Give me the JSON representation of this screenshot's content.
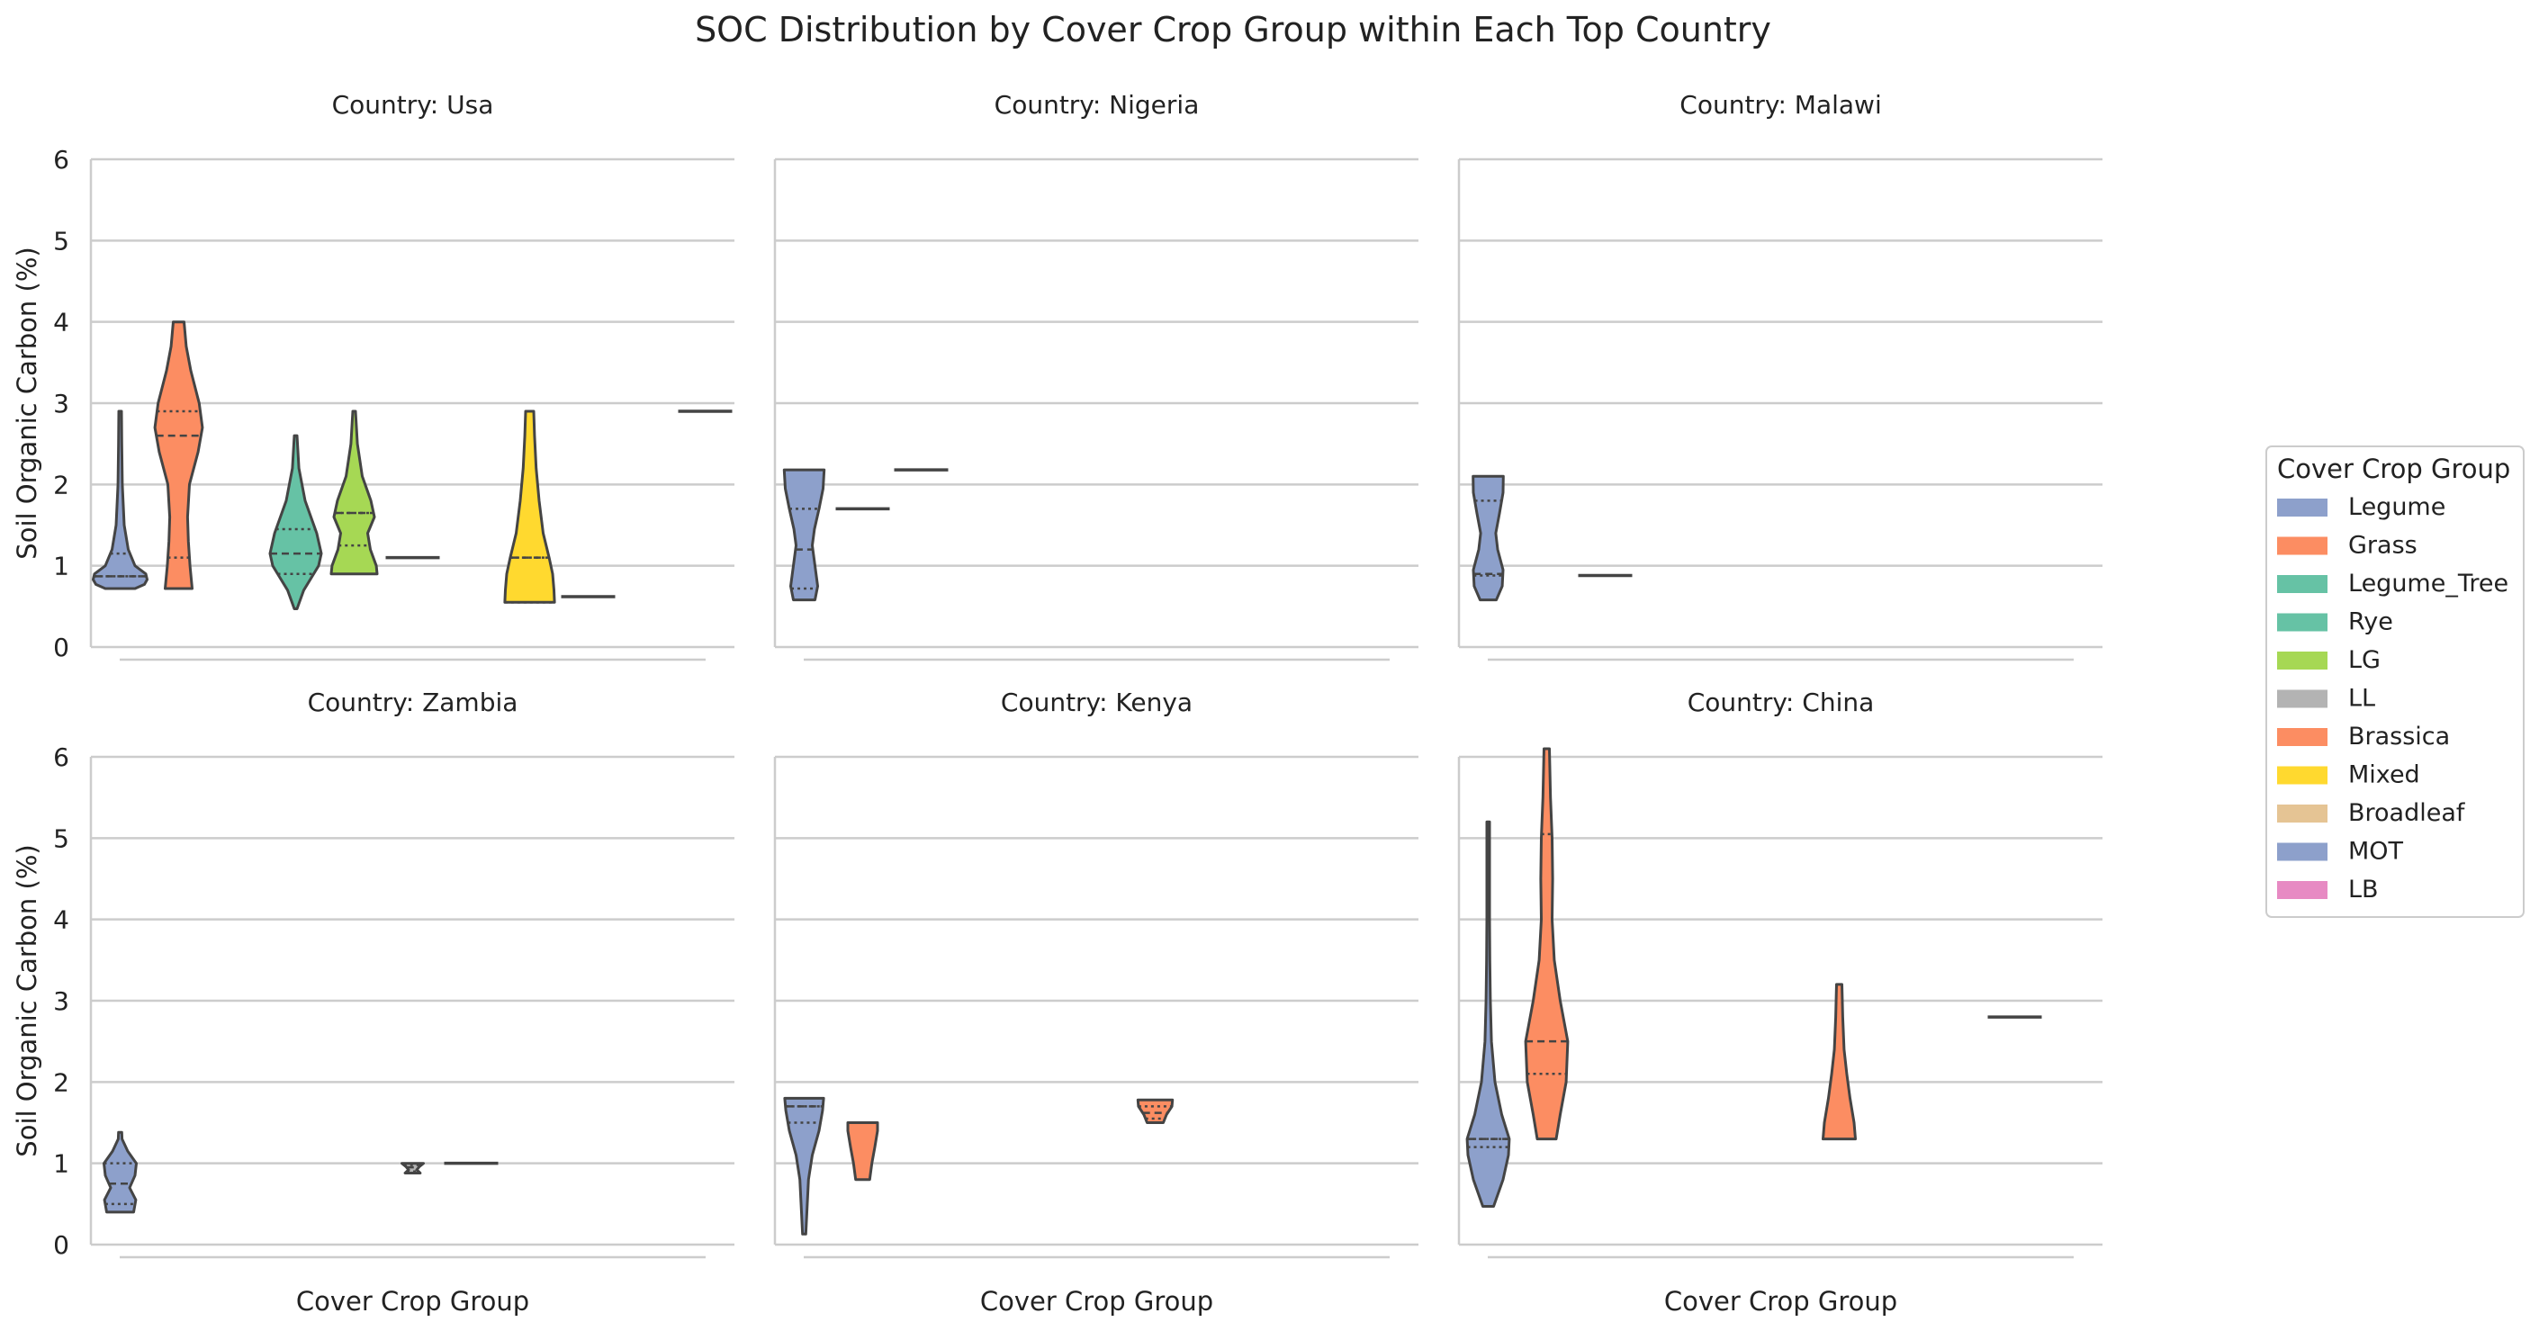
{
  "chart_data": {
    "type": "violin",
    "title": "SOC Distribution by Cover Crop Group within Each Top Country",
    "xlabel": "Cover Crop Group",
    "ylabel": "Soil Organic Carbon (%)",
    "ylim": [
      0,
      6
    ],
    "yticks": [
      0,
      1,
      2,
      3,
      4,
      5,
      6
    ],
    "grid": "horizontal",
    "legend": {
      "title": "Cover Crop Group",
      "position": "right",
      "entries": [
        {
          "name": "Legume",
          "color": "#8da0cb"
        },
        {
          "name": "Grass",
          "color": "#fc8d62"
        },
        {
          "name": "Legume_Tree",
          "color": "#66c2a5"
        },
        {
          "name": "Rye",
          "color": "#66c2a5"
        },
        {
          "name": "LG",
          "color": "#a6d854"
        },
        {
          "name": "LL",
          "color": "#b3b3b3"
        },
        {
          "name": "Brassica",
          "color": "#fc8d62"
        },
        {
          "name": "Mixed",
          "color": "#ffd92f"
        },
        {
          "name": "Broadleaf",
          "color": "#e5c494"
        },
        {
          "name": "MOT",
          "color": "#8da0cb"
        },
        {
          "name": "LB",
          "color": "#e78ac3"
        }
      ]
    },
    "panels": [
      {
        "title": "Country: Usa",
        "violins": [
          {
            "group": "Legume",
            "slot": 0,
            "color": "#8da0cb",
            "min": 0.72,
            "max": 2.9,
            "q1": 0.87,
            "median": 0.87,
            "q3": 1.15,
            "profile": [
              [
                0.72,
                0.55
              ],
              [
                0.77,
                0.9
              ],
              [
                0.83,
                1.0
              ],
              [
                0.9,
                0.95
              ],
              [
                1.0,
                0.55
              ],
              [
                1.2,
                0.3
              ],
              [
                1.5,
                0.15
              ],
              [
                2.0,
                0.08
              ],
              [
                2.5,
                0.06
              ],
              [
                2.9,
                0.05
              ]
            ]
          },
          {
            "group": "Grass",
            "slot": 1,
            "color": "#fc8d62",
            "min": 0.72,
            "max": 4.0,
            "q1": 1.1,
            "median": 2.6,
            "q3": 2.9,
            "profile": [
              [
                0.72,
                0.5
              ],
              [
                1.0,
                0.42
              ],
              [
                1.3,
                0.36
              ],
              [
                1.6,
                0.33
              ],
              [
                2.0,
                0.4
              ],
              [
                2.4,
                0.72
              ],
              [
                2.7,
                0.88
              ],
              [
                3.0,
                0.76
              ],
              [
                3.4,
                0.45
              ],
              [
                3.7,
                0.28
              ],
              [
                4.0,
                0.2
              ]
            ]
          },
          {
            "group": "Rye",
            "slot": 3,
            "color": "#66c2a5",
            "min": 0.47,
            "max": 2.6,
            "q1": 0.9,
            "median": 1.15,
            "q3": 1.45,
            "profile": [
              [
                0.47,
                0.05
              ],
              [
                0.7,
                0.3
              ],
              [
                1.0,
                0.85
              ],
              [
                1.15,
                0.95
              ],
              [
                1.4,
                0.78
              ],
              [
                1.8,
                0.35
              ],
              [
                2.2,
                0.12
              ],
              [
                2.6,
                0.05
              ]
            ]
          },
          {
            "group": "LG",
            "slot": 4,
            "color": "#a6d854",
            "min": 0.9,
            "max": 2.9,
            "q1": 1.25,
            "median": 1.65,
            "q3": 1.65,
            "profile": [
              [
                0.9,
                0.85
              ],
              [
                1.0,
                0.82
              ],
              [
                1.2,
                0.6
              ],
              [
                1.4,
                0.5
              ],
              [
                1.6,
                0.75
              ],
              [
                1.8,
                0.62
              ],
              [
                2.1,
                0.3
              ],
              [
                2.5,
                0.12
              ],
              [
                2.9,
                0.05
              ]
            ]
          },
          {
            "group": "LL",
            "slot": 5,
            "color": "#b3b3b3",
            "min": 1.1,
            "max": 1.1,
            "median": 1.1
          },
          {
            "group": "Mixed",
            "slot": 7,
            "color": "#ffd92f",
            "min": 0.55,
            "max": 2.9,
            "q1": 0.55,
            "median": 1.1,
            "q3": 1.1,
            "profile": [
              [
                0.55,
                0.92
              ],
              [
                0.7,
                0.9
              ],
              [
                0.9,
                0.85
              ],
              [
                1.1,
                0.72
              ],
              [
                1.4,
                0.5
              ],
              [
                1.8,
                0.35
              ],
              [
                2.2,
                0.24
              ],
              [
                2.6,
                0.18
              ],
              [
                2.9,
                0.15
              ]
            ]
          },
          {
            "group": "Broadleaf",
            "slot": 8,
            "color": "#e5c494",
            "min": 0.62,
            "max": 0.62,
            "median": 0.62
          },
          {
            "group": "LB",
            "slot": 10,
            "color": "#e78ac3",
            "min": 2.9,
            "max": 2.9,
            "median": 2.9
          }
        ]
      },
      {
        "title": "Country: Nigeria",
        "violins": [
          {
            "group": "Legume",
            "slot": 0,
            "color": "#8da0cb",
            "min": 0.58,
            "max": 2.18,
            "q1": 0.72,
            "median": 1.2,
            "q3": 1.7,
            "profile": [
              [
                0.58,
                0.4
              ],
              [
                0.75,
                0.5
              ],
              [
                1.0,
                0.4
              ],
              [
                1.25,
                0.3
              ],
              [
                1.45,
                0.38
              ],
              [
                1.7,
                0.55
              ],
              [
                1.95,
                0.7
              ],
              [
                2.18,
                0.74
              ]
            ]
          },
          {
            "group": "Grass",
            "slot": 1,
            "color": "#fc8d62",
            "min": 1.7,
            "max": 1.7,
            "median": 1.7
          },
          {
            "group": "Legume_Tree",
            "slot": 2,
            "color": "#66c2a5",
            "min": 2.18,
            "max": 2.18,
            "median": 2.18
          }
        ]
      },
      {
        "title": "Country: Malawi",
        "violins": [
          {
            "group": "Legume",
            "slot": 0,
            "color": "#8da0cb",
            "min": 0.58,
            "max": 2.1,
            "q1": 0.88,
            "median": 0.9,
            "q3": 1.8,
            "profile": [
              [
                0.58,
                0.3
              ],
              [
                0.75,
                0.52
              ],
              [
                0.95,
                0.55
              ],
              [
                1.2,
                0.35
              ],
              [
                1.4,
                0.28
              ],
              [
                1.65,
                0.42
              ],
              [
                1.9,
                0.55
              ],
              [
                2.1,
                0.56
              ]
            ]
          },
          {
            "group": "Grass",
            "slot": 2,
            "color": "#fc8d62",
            "min": 0.88,
            "max": 0.88,
            "median": 0.88
          }
        ]
      },
      {
        "title": "Country: Zambia",
        "violins": [
          {
            "group": "Legume",
            "slot": 0,
            "color": "#8da0cb",
            "min": 0.4,
            "max": 1.38,
            "q1": 0.5,
            "median": 0.75,
            "q3": 1.0,
            "profile": [
              [
                0.4,
                0.5
              ],
              [
                0.55,
                0.58
              ],
              [
                0.7,
                0.35
              ],
              [
                0.85,
                0.55
              ],
              [
                1.0,
                0.6
              ],
              [
                1.15,
                0.28
              ],
              [
                1.3,
                0.07
              ],
              [
                1.38,
                0.06
              ]
            ]
          },
          {
            "group": "LL",
            "slot": 5,
            "color": "#b3b3b3",
            "min": 0.88,
            "max": 1.0,
            "q1": 0.9,
            "median": 0.95,
            "q3": 0.98,
            "profile": [
              [
                0.88,
                0.28
              ],
              [
                0.92,
                0.15
              ],
              [
                0.96,
                0.25
              ],
              [
                1.0,
                0.4
              ]
            ]
          },
          {
            "group": "Brassica",
            "slot": 6,
            "color": "#fc8d62",
            "min": 1.0,
            "max": 1.0,
            "median": 1.0
          }
        ]
      },
      {
        "title": "Country: Kenya",
        "violins": [
          {
            "group": "Legume",
            "slot": 0,
            "color": "#8da0cb",
            "min": 0.13,
            "max": 1.8,
            "q1": 1.5,
            "median": 1.7,
            "q3": 1.7,
            "profile": [
              [
                0.13,
                0.06
              ],
              [
                0.4,
                0.1
              ],
              [
                0.8,
                0.16
              ],
              [
                1.1,
                0.3
              ],
              [
                1.4,
                0.55
              ],
              [
                1.65,
                0.68
              ],
              [
                1.8,
                0.72
              ]
            ]
          },
          {
            "group": "Grass",
            "slot": 1,
            "color": "#fc8d62",
            "min": 0.8,
            "max": 1.5,
            "profile": [
              [
                0.8,
                0.26
              ],
              [
                1.0,
                0.34
              ],
              [
                1.2,
                0.45
              ],
              [
                1.4,
                0.55
              ],
              [
                1.5,
                0.55
              ]
            ]
          },
          {
            "group": "Brassica",
            "slot": 6,
            "color": "#fc8d62",
            "min": 1.5,
            "max": 1.78,
            "q1": 1.55,
            "median": 1.62,
            "q3": 1.7,
            "profile": [
              [
                1.5,
                0.3
              ],
              [
                1.6,
                0.42
              ],
              [
                1.7,
                0.62
              ],
              [
                1.78,
                0.64
              ]
            ]
          }
        ]
      },
      {
        "title": "Country: China",
        "violins": [
          {
            "group": "Legume",
            "slot": 0,
            "color": "#8da0cb",
            "min": 0.47,
            "max": 5.2,
            "q1": 1.2,
            "median": 1.3,
            "q3": 1.3,
            "profile": [
              [
                0.47,
                0.2
              ],
              [
                0.8,
                0.55
              ],
              [
                1.1,
                0.75
              ],
              [
                1.3,
                0.78
              ],
              [
                1.6,
                0.5
              ],
              [
                2.0,
                0.25
              ],
              [
                2.5,
                0.12
              ],
              [
                3.0,
                0.08
              ],
              [
                3.5,
                0.06
              ],
              [
                4.0,
                0.05
              ],
              [
                4.5,
                0.05
              ],
              [
                5.2,
                0.05
              ]
            ]
          },
          {
            "group": "Grass",
            "slot": 1,
            "color": "#fc8d62",
            "min": 1.3,
            "max": 6.1,
            "q1": 2.1,
            "median": 2.5,
            "q3": 5.05,
            "profile": [
              [
                1.3,
                0.35
              ],
              [
                1.6,
                0.5
              ],
              [
                2.0,
                0.72
              ],
              [
                2.5,
                0.78
              ],
              [
                3.0,
                0.5
              ],
              [
                3.5,
                0.28
              ],
              [
                4.0,
                0.2
              ],
              [
                4.5,
                0.22
              ],
              [
                5.0,
                0.2
              ],
              [
                5.5,
                0.14
              ],
              [
                6.1,
                0.1
              ]
            ]
          },
          {
            "group": "Brassica",
            "slot": 6,
            "color": "#fc8d62",
            "min": 1.3,
            "max": 3.2,
            "profile": [
              [
                1.3,
                0.6
              ],
              [
                1.5,
                0.55
              ],
              [
                1.8,
                0.4
              ],
              [
                2.1,
                0.28
              ],
              [
                2.4,
                0.18
              ],
              [
                2.8,
                0.13
              ],
              [
                3.2,
                0.1
              ]
            ]
          },
          {
            "group": "LB",
            "slot": 9,
            "color": "#e78ac3",
            "min": 2.8,
            "max": 2.8,
            "median": 2.8
          }
        ]
      }
    ]
  }
}
